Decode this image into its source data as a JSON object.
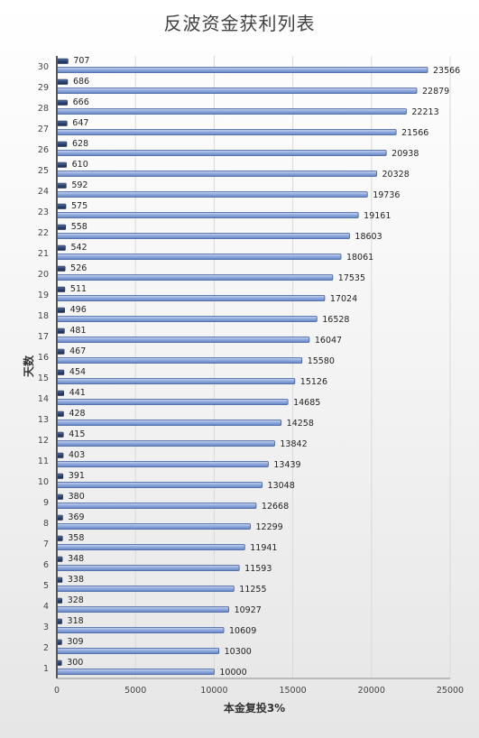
{
  "chart_data": {
    "type": "bar",
    "orientation": "horizontal",
    "title": "反波资金获利列表",
    "xlabel": "本金复投3%",
    "ylabel": "天数",
    "xlim": [
      0,
      25000
    ],
    "xticks": [
      "0",
      "5000",
      "10000",
      "15000",
      "20000",
      "25000"
    ],
    "grid": true,
    "categories": [
      "1",
      "2",
      "3",
      "4",
      "5",
      "6",
      "7",
      "8",
      "9",
      "10",
      "11",
      "12",
      "13",
      "14",
      "15",
      "16",
      "17",
      "18",
      "19",
      "20",
      "21",
      "22",
      "23",
      "24",
      "25",
      "26",
      "27",
      "28",
      "29",
      "30"
    ],
    "series": [
      {
        "values": [
          300,
          309,
          318,
          328,
          338,
          348,
          358,
          369,
          380,
          391,
          403,
          415,
          428,
          441,
          454,
          467,
          481,
          496,
          511,
          526,
          542,
          558,
          575,
          592,
          610,
          628,
          647,
          666,
          686,
          707
        ],
        "color": "#2a3f6b"
      },
      {
        "values": [
          10000,
          10300,
          10609,
          10927,
          11255,
          11593,
          11941,
          12299,
          12668,
          13048,
          13439,
          13842,
          14258,
          14685,
          15126,
          15580,
          16047,
          16528,
          17024,
          17535,
          18061,
          18603,
          19161,
          19736,
          20328,
          20938,
          21566,
          22213,
          22879,
          23566
        ],
        "color": "#8faadc"
      }
    ]
  }
}
